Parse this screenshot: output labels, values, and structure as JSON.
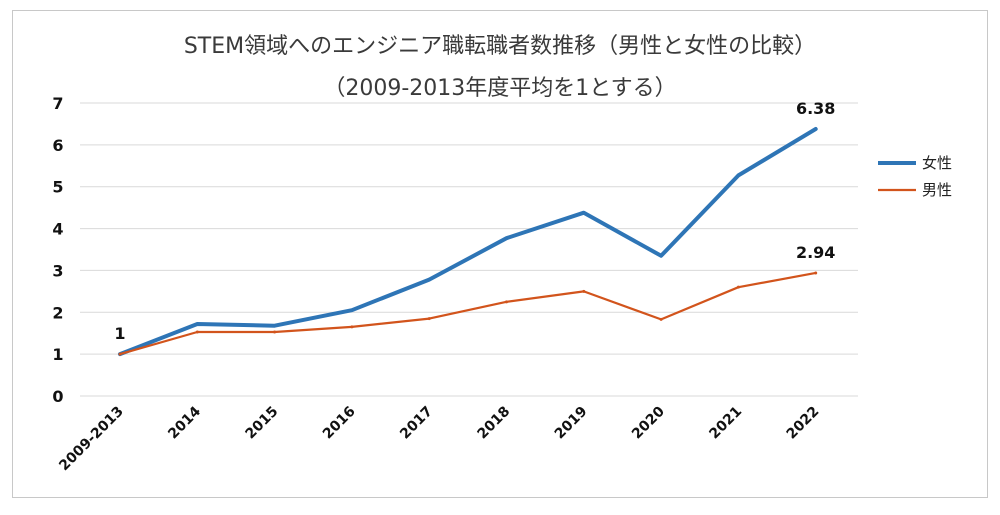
{
  "chart_data": {
    "type": "line",
    "title": "STEM領域へのエンジニア職転職者数推移（男性と女性の比較）",
    "subtitle": "（2009-2013年度平均を1とする）",
    "categories": [
      "2009-2013",
      "2014",
      "2015",
      "2016",
      "2017",
      "2018",
      "2019",
      "2020",
      "2021",
      "2022"
    ],
    "ylim": [
      0,
      7
    ],
    "yticks": [
      "0",
      "1",
      "2",
      "3",
      "4",
      "5",
      "6",
      "7"
    ],
    "grid": true,
    "legend_position": "right",
    "series": [
      {
        "name": "女性",
        "color": "#2e75b6",
        "values": [
          1.0,
          1.72,
          1.68,
          2.05,
          2.78,
          3.77,
          4.38,
          3.35,
          5.27,
          6.38
        ]
      },
      {
        "name": "男性",
        "color": "#d2541c",
        "values": [
          1.0,
          1.53,
          1.53,
          1.65,
          1.85,
          2.25,
          2.5,
          1.83,
          2.6,
          2.94
        ]
      }
    ],
    "annotations": [
      {
        "text": "1",
        "series": 0,
        "index": 0
      },
      {
        "text": "6.38",
        "series": 0,
        "index": 9
      },
      {
        "text": "2.94",
        "series": 1,
        "index": 9
      }
    ]
  }
}
